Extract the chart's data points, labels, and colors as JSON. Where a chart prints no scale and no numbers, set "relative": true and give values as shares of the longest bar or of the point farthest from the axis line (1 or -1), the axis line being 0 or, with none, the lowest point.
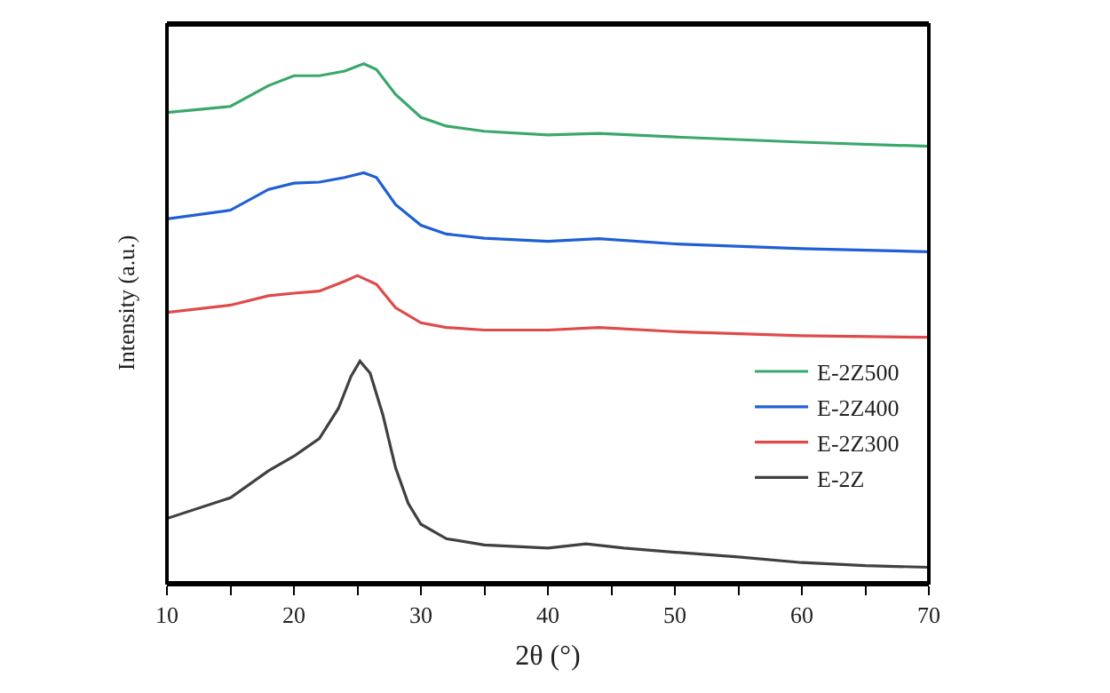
{
  "chart_data": {
    "type": "line",
    "relative": true,
    "xlabel": "2θ (°)",
    "ylabel": "Intensity (a.u.)",
    "x": [
      10,
      15,
      18,
      20,
      22,
      24,
      25.5,
      26.5,
      28,
      30,
      32,
      35,
      40,
      44,
      50,
      60,
      70
    ],
    "xlim": [
      10,
      70
    ],
    "xticks": [
      10,
      {
        "value": 15,
        "label": null
      },
      20,
      {
        "value": 25,
        "label": null
      },
      30,
      {
        "value": 35,
        "label": null
      },
      40,
      {
        "value": 45,
        "label": null
      },
      50,
      {
        "value": 55,
        "label": null
      },
      60,
      {
        "value": 65,
        "label": null
      },
      70
    ],
    "series": [
      {
        "name": "E-2Z500",
        "color": "#3aa86b",
        "values": [
          0.906,
          0.918,
          0.958,
          0.977,
          0.977,
          0.986,
          1,
          0.989,
          0.941,
          0.897,
          0.88,
          0.87,
          0.863,
          0.866,
          0.859,
          0.849,
          0.841
        ]
      },
      {
        "name": "E-2Z400",
        "color": "#1f5fd6",
        "values": [
          0.701,
          0.718,
          0.758,
          0.77,
          0.772,
          0.781,
          0.79,
          0.781,
          0.729,
          0.689,
          0.672,
          0.664,
          0.658,
          0.663,
          0.653,
          0.644,
          0.638
        ]
      },
      {
        "name": "E-2Z300",
        "color": "#e04a4a",
        "x": [
          10,
          15,
          18,
          20,
          22,
          24,
          25,
          26.5,
          28,
          30,
          32,
          35,
          40,
          44,
          50,
          60,
          70
        ],
        "values": [
          0.521,
          0.535,
          0.553,
          0.558,
          0.562,
          0.581,
          0.592,
          0.575,
          0.53,
          0.501,
          0.492,
          0.487,
          0.487,
          0.492,
          0.484,
          0.476,
          0.473
        ]
      },
      {
        "name": "E-2Z",
        "color": "#404040",
        "x": [
          10,
          15,
          18,
          20,
          22,
          23.5,
          24.5,
          25.2,
          26,
          27,
          28,
          29,
          30,
          32,
          35,
          40,
          43,
          46,
          50,
          55,
          60,
          65,
          70
        ],
        "values": [
          0.124,
          0.164,
          0.216,
          0.244,
          0.278,
          0.336,
          0.398,
          0.427,
          0.404,
          0.324,
          0.222,
          0.153,
          0.113,
          0.085,
          0.073,
          0.067,
          0.075,
          0.067,
          0.059,
          0.05,
          0.039,
          0.033,
          0.03
        ]
      }
    ],
    "legend": "bottom right",
    "grid": false,
    "marker": "none",
    "line_style": "solid"
  }
}
